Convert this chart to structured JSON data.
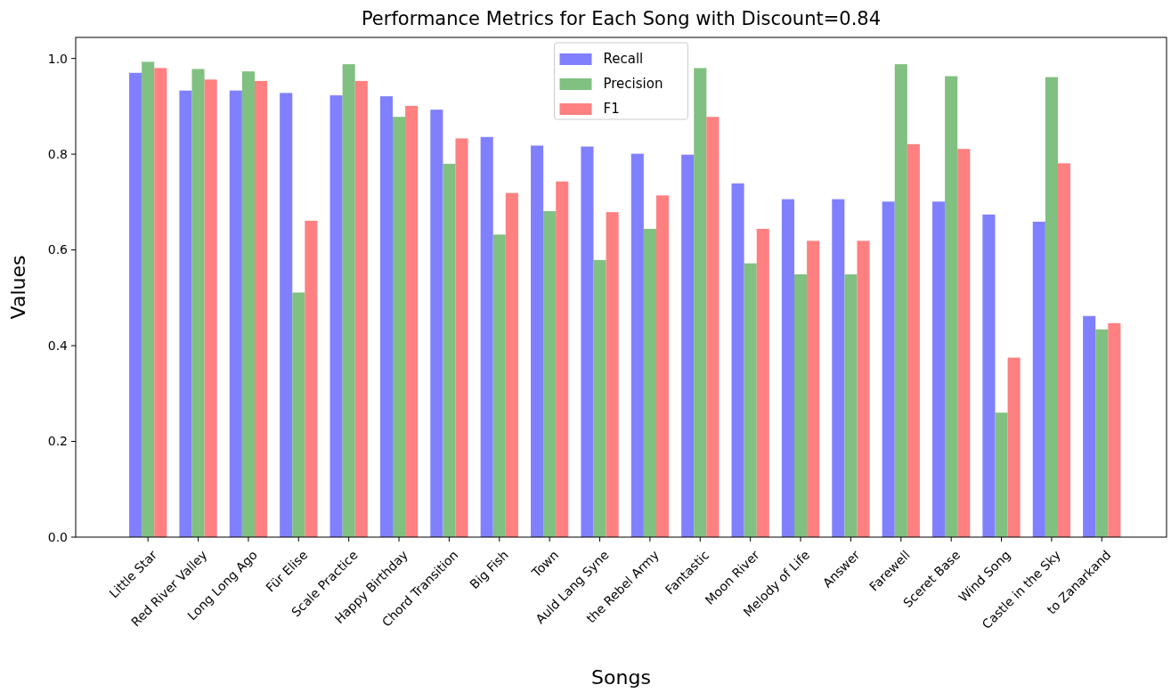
{
  "chart_data": {
    "type": "bar",
    "title": "Performance Metrics for Each Song with Discount=0.84",
    "xlabel": "Songs",
    "ylabel": "Values",
    "categories": [
      "Little Star",
      "Red River Valley",
      "Long Long Ago",
      "Für Elise",
      "Scale Practice",
      "Happy Birthday",
      "Chord Transition",
      "Big Fish",
      "Town",
      "Auld Lang Syne",
      "the Rebel Army",
      "Fantastic",
      "Moon River",
      "Melody of Life",
      "Answer",
      "Farewell",
      "Sceret Base",
      "Wind Song",
      "Castle in the Sky",
      "to Zanarkand"
    ],
    "series": [
      {
        "name": "Recall",
        "color": "#8080ff",
        "values": [
          0.97,
          0.933,
          0.933,
          0.928,
          0.923,
          0.921,
          0.893,
          0.836,
          0.818,
          0.816,
          0.801,
          0.799,
          0.739,
          0.706,
          0.706,
          0.701,
          0.701,
          0.674,
          0.659,
          0.462
        ]
      },
      {
        "name": "Precision",
        "color": "#80c080",
        "values": [
          0.993,
          0.978,
          0.973,
          0.511,
          0.988,
          0.878,
          0.78,
          0.632,
          0.681,
          0.579,
          0.644,
          0.98,
          0.572,
          0.549,
          0.549,
          0.988,
          0.963,
          0.26,
          0.961,
          0.434
        ]
      },
      {
        "name": "F1",
        "color": "#ff8080",
        "values": [
          0.98,
          0.956,
          0.953,
          0.661,
          0.953,
          0.901,
          0.833,
          0.719,
          0.743,
          0.679,
          0.714,
          0.878,
          0.644,
          0.619,
          0.619,
          0.821,
          0.811,
          0.375,
          0.781,
          0.447
        ]
      }
    ],
    "ylim": [
      0,
      1.044
    ],
    "yticks": [
      {
        "value": 0,
        "label": "0.0"
      },
      {
        "value": 0.2,
        "label": "0.2"
      },
      {
        "value": 0.4,
        "label": "0.4"
      },
      {
        "value": 0.6,
        "label": "0.6"
      },
      {
        "value": 0.8,
        "label": "0.8"
      },
      {
        "value": 1,
        "label": "1.0"
      }
    ],
    "legend": "top"
  }
}
